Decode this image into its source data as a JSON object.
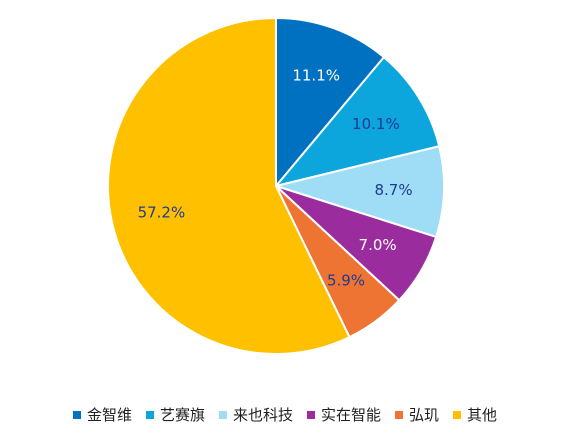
{
  "chart_data": {
    "type": "pie",
    "slices": [
      {
        "label": "金智维",
        "value": 11.1,
        "color": "#0070C0",
        "display": "11.1%",
        "label_color": "#ffffff"
      },
      {
        "label": "艺赛旗",
        "value": 10.1,
        "color": "#0CA6DC",
        "display": "10.1%",
        "label_color": "#1f3a93"
      },
      {
        "label": "来也科技",
        "value": 8.7,
        "color": "#9FDCF6",
        "display": "8.7%",
        "label_color": "#1f3a93"
      },
      {
        "label": "实在智能",
        "value": 7.0,
        "color": "#9B2C9D",
        "display": "7.0%",
        "label_color": "#ffffff"
      },
      {
        "label": "弘玑",
        "value": 5.9,
        "color": "#ED7433",
        "display": "5.9%",
        "label_color": "#1f3a93"
      },
      {
        "label": "其他",
        "value": 57.2,
        "color": "#FFC000",
        "display": "57.2%",
        "label_color": "#1f3a93"
      }
    ],
    "start_angle": "12 o'clock",
    "direction": "clockwise",
    "legend_position": "bottom"
  }
}
